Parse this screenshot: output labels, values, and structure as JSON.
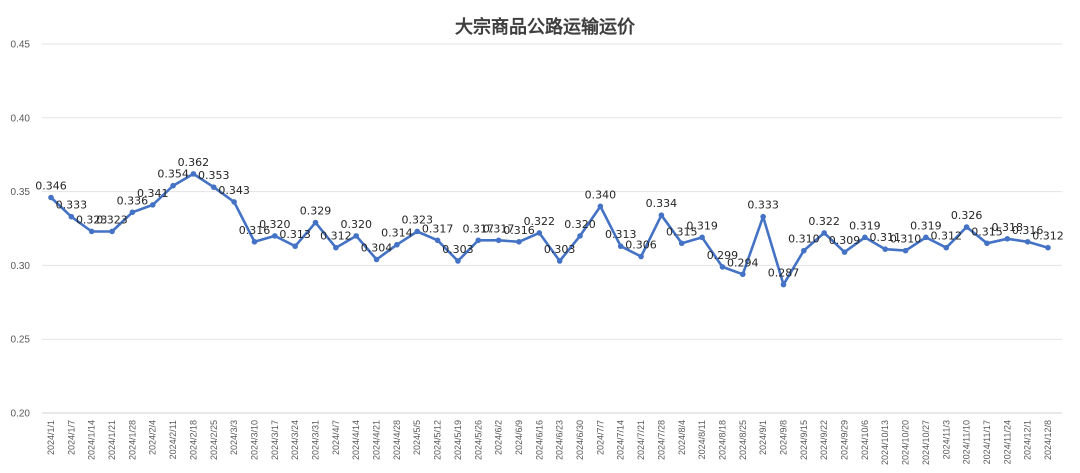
{
  "chart_data": {
    "type": "line",
    "title": "大宗商品公路运输运价",
    "xlabel": "",
    "ylabel": "",
    "ylim": [
      0.2,
      0.45
    ],
    "yticks": [
      "0.20",
      "0.25",
      "0.30",
      "0.35",
      "0.40",
      "0.45"
    ],
    "grid": true,
    "legend": "none",
    "line_color": "#4472c4",
    "categories": [
      "2024/1/1",
      "2024/1/7",
      "2024/1/14",
      "2024/1/21",
      "2024/1/28",
      "2024/2/4",
      "2024/2/11",
      "2024/2/18",
      "2024/2/25",
      "2024/3/3",
      "2024/3/10",
      "2024/3/17",
      "2024/3/24",
      "2024/3/31",
      "2024/4/7",
      "2024/4/14",
      "2024/4/21",
      "2024/4/28",
      "2024/5/5",
      "2024/5/12",
      "2024/5/19",
      "2024/5/26",
      "2024/6/2",
      "2024/6/9",
      "2024/6/16",
      "2024/6/23",
      "2024/6/30",
      "2024/7/7",
      "2024/7/14",
      "2024/7/21",
      "2024/7/28",
      "2024/8/4",
      "2024/8/11",
      "2024/8/18",
      "2024/8/25",
      "2024/9/1",
      "2024/9/8",
      "2024/9/15",
      "2024/9/22",
      "2024/9/29",
      "2024/10/6",
      "2024/10/13",
      "2024/10/20",
      "2024/10/27",
      "2024/11/3",
      "2024/11/10",
      "2024/11/17",
      "2024/11/24",
      "2024/12/1",
      "2024/12/8"
    ],
    "values": [
      0.346,
      0.333,
      0.323,
      0.323,
      0.336,
      0.341,
      0.354,
      0.362,
      0.353,
      0.343,
      0.316,
      0.32,
      0.313,
      0.329,
      0.312,
      0.32,
      0.304,
      0.314,
      0.323,
      0.317,
      0.303,
      0.317,
      0.317,
      0.316,
      0.322,
      0.303,
      0.32,
      0.34,
      0.313,
      0.306,
      0.334,
      0.315,
      0.319,
      0.299,
      0.294,
      0.333,
      0.287,
      0.31,
      0.322,
      0.309,
      0.319,
      0.311,
      0.31,
      0.319,
      0.312,
      0.326,
      0.315,
      0.318,
      0.316,
      0.312
    ],
    "data_labels": [
      "0.346",
      "0.333",
      "0.323",
      "0.323",
      "0.336",
      "0.341",
      "0.354",
      "0.362",
      "0.353",
      "0.343",
      "0.316",
      "0.320",
      "0.313",
      "0.329",
      "0.312",
      "0.320",
      "0.304",
      "0.314",
      "0.323",
      "0.317",
      "0.303",
      "0.317",
      "0.317",
      "0.316",
      "0.322",
      "0.303",
      "0.320",
      "0.340",
      "0.313",
      "0.306",
      "0.334",
      "0.315",
      "0.319",
      "0.299",
      "0.294",
      "0.333",
      "0.287",
      "0.310",
      "0.322",
      "0.309",
      "0.319",
      "0.311",
      "0.310",
      "0.319",
      "0.312",
      "0.326",
      "0.315",
      "0.318",
      "0.316",
      "0.312"
    ]
  }
}
